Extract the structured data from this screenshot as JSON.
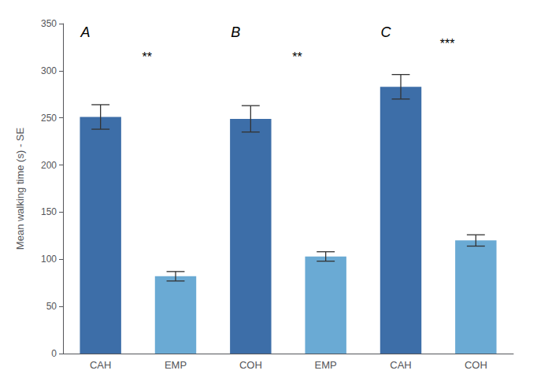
{
  "chart_data": {
    "type": "bar",
    "categories": [
      "CAH",
      "EMP",
      "COH",
      "EMP",
      "CAH",
      "COH"
    ],
    "values": [
      251,
      82,
      249,
      103,
      283,
      120
    ],
    "errors": [
      13,
      5,
      14,
      5,
      13,
      6
    ],
    "colors": [
      "#3D6EA8",
      "#6AAAD4",
      "#3D6EA8",
      "#6AAAD4",
      "#3D6EA8",
      "#6AAAD4"
    ],
    "ylabel": "Mean walking time (s) - SE",
    "ylim": [
      0,
      350
    ],
    "yticks": [
      0,
      50,
      100,
      150,
      200,
      250,
      300,
      350
    ],
    "grid": false,
    "annotations": [
      {
        "text": "A",
        "y": 348
      },
      {
        "text": "**",
        "y": 308
      },
      {
        "text": "B",
        "y": 348
      },
      {
        "text": "**",
        "y": 308
      },
      {
        "text": "C",
        "y": 348
      },
      {
        "text": "***",
        "y": 322
      }
    ]
  }
}
